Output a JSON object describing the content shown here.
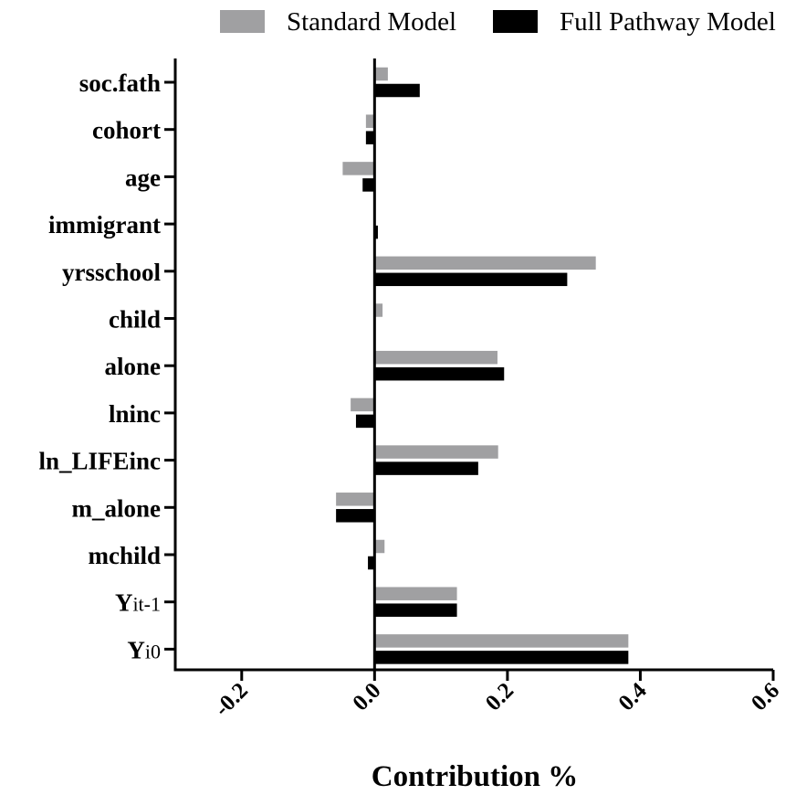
{
  "chart_data": {
    "type": "bar",
    "orientation": "horizontal",
    "categories": [
      "soc.fath",
      "cohort",
      "age",
      "immigrant",
      "yrsschool",
      "child",
      "alone",
      "lninc",
      "ln_LIFEinc",
      "m_alone",
      "mchild",
      "Y_it-1",
      "Y_i0"
    ],
    "category_labels": [
      {
        "main": "soc.fath",
        "sub": ""
      },
      {
        "main": "cohort",
        "sub": ""
      },
      {
        "main": "age",
        "sub": ""
      },
      {
        "main": "immigrant",
        "sub": ""
      },
      {
        "main": "yrsschool",
        "sub": ""
      },
      {
        "main": "child",
        "sub": ""
      },
      {
        "main": "alone",
        "sub": ""
      },
      {
        "main": "lninc",
        "sub": ""
      },
      {
        "main": "ln_LIFEinc",
        "sub": ""
      },
      {
        "main": "m_alone",
        "sub": ""
      },
      {
        "main": "mchild",
        "sub": ""
      },
      {
        "main": "Y",
        "sub": "it-1"
      },
      {
        "main": "Y",
        "sub": "i0"
      }
    ],
    "series": [
      {
        "name": "Standard Model",
        "color": "#a0a0a2",
        "values": [
          0.02,
          -0.013,
          -0.048,
          0.0,
          0.333,
          0.012,
          0.185,
          -0.036,
          0.186,
          -0.058,
          0.015,
          0.124,
          0.382
        ]
      },
      {
        "name": "Full Pathway Model",
        "color": "#000000",
        "values": [
          0.068,
          -0.013,
          -0.018,
          0.005,
          0.29,
          0.0,
          0.195,
          -0.028,
          0.156,
          -0.058,
          -0.01,
          0.124,
          0.382
        ]
      }
    ],
    "xlabel": "Contribution %",
    "ylabel": "",
    "xlim": [
      -0.3,
      0.6
    ],
    "xticks": [
      -0.2,
      0.0,
      0.2,
      0.4,
      0.6
    ],
    "xtick_labels": [
      "-0.2",
      "0.0",
      "0.2",
      "0.4",
      "0.6"
    ],
    "grid": false,
    "legend": "top"
  }
}
